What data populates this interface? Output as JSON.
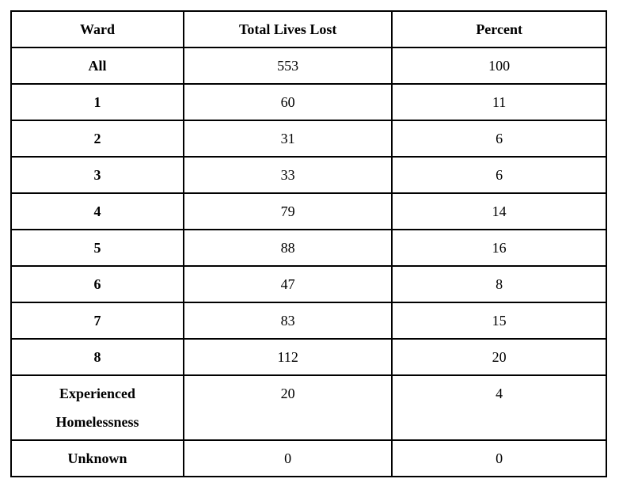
{
  "table": {
    "columns": [
      "Ward",
      "Total Lives Lost",
      "Percent"
    ],
    "rows": [
      {
        "ward": "All",
        "total_lives_lost": "553",
        "percent": "100"
      },
      {
        "ward": "1",
        "total_lives_lost": "60",
        "percent": "11"
      },
      {
        "ward": "2",
        "total_lives_lost": "31",
        "percent": "6"
      },
      {
        "ward": "3",
        "total_lives_lost": "33",
        "percent": "6"
      },
      {
        "ward": "4",
        "total_lives_lost": "79",
        "percent": "14"
      },
      {
        "ward": "5",
        "total_lives_lost": "88",
        "percent": "16"
      },
      {
        "ward": "6",
        "total_lives_lost": "47",
        "percent": "8"
      },
      {
        "ward": "7",
        "total_lives_lost": "83",
        "percent": "15"
      },
      {
        "ward": "8",
        "total_lives_lost": "112",
        "percent": "20"
      },
      {
        "ward": "Experienced Homelessness",
        "total_lives_lost": "20",
        "percent": "4"
      },
      {
        "ward": "Unknown",
        "total_lives_lost": "0",
        "percent": "0"
      }
    ]
  },
  "colors": {
    "border": "#000000",
    "text": "#000000",
    "background": "#ffffff"
  }
}
